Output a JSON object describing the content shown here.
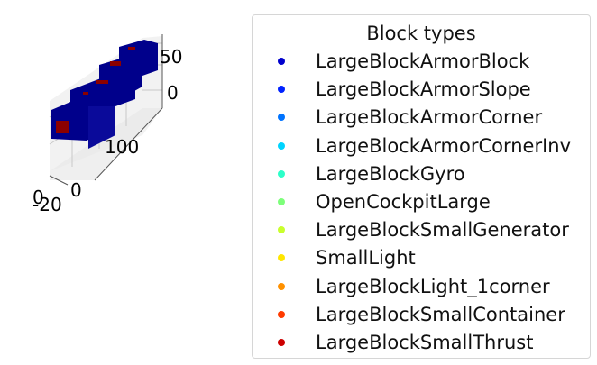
{
  "chart_data": {
    "type": "scatter3d",
    "title": "",
    "legend": {
      "title": "Block types",
      "placement": "right",
      "entries": [
        {
          "name": "LargeBlockArmorBlock",
          "color": "#0000cd"
        },
        {
          "name": "LargeBlockArmorSlope",
          "color": "#0022ff"
        },
        {
          "name": "LargeBlockArmorCorner",
          "color": "#0073ff"
        },
        {
          "name": "LargeBlockArmorCornerInv",
          "color": "#00d4ff"
        },
        {
          "name": "LargeBlockGyro",
          "color": "#2dffc9"
        },
        {
          "name": "OpenCockpitLarge",
          "color": "#7dff7a"
        },
        {
          "name": "LargeBlockSmallGenerator",
          "color": "#c9ff2d"
        },
        {
          "name": "SmallLight",
          "color": "#ffe600"
        },
        {
          "name": "LargeBlockLight_1corner",
          "color": "#ff9100"
        },
        {
          "name": "LargeBlockSmallContainer",
          "color": "#ff3b00"
        },
        {
          "name": "LargeBlockSmallThrust",
          "color": "#cd0000"
        }
      ]
    },
    "axes": {
      "x": {
        "ticks": [
          "0",
          "100"
        ]
      },
      "y": {
        "ticks": [
          "0",
          "-20"
        ]
      },
      "z": {
        "ticks": [
          "0",
          "50"
        ]
      }
    },
    "grid": true
  }
}
